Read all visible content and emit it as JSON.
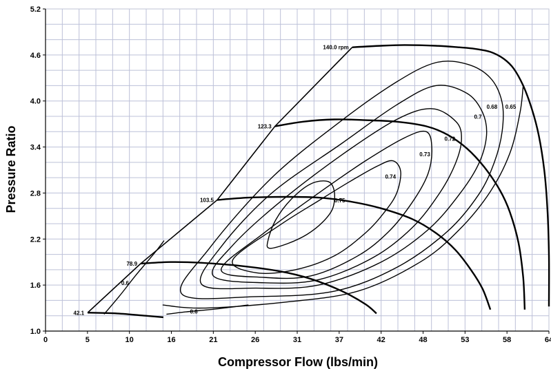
{
  "chart_data": {
    "type": "line",
    "title": "",
    "xlabel": "Compressor Flow (lbs/min)",
    "ylabel": "Pressure Ratio",
    "xlim": [
      0,
      64.5
    ],
    "ylim": [
      1.0,
      5.2
    ],
    "grid": true,
    "x_tick_labels": [
      "0",
      "5",
      "10",
      "16",
      "21",
      "26",
      "31",
      "37",
      "42",
      "48",
      "53",
      "58",
      "64"
    ],
    "y_tick_labels": [
      "1.0",
      "1.6",
      "2.2",
      "2.8",
      "3.4",
      "4.0",
      "4.6",
      "5.2"
    ],
    "speed_lines": [
      {
        "label": "42.1",
        "points": [
          [
            5.4,
            1.24
          ],
          [
            9.2,
            1.23
          ],
          [
            12.8,
            1.2
          ],
          [
            15.1,
            1.18
          ]
        ]
      },
      {
        "label": "78.9",
        "points": [
          [
            12.2,
            1.88
          ],
          [
            16,
            1.9
          ],
          [
            20,
            1.89
          ],
          [
            25,
            1.85
          ],
          [
            30,
            1.78
          ],
          [
            34,
            1.68
          ],
          [
            38,
            1.52
          ],
          [
            41,
            1.35
          ],
          [
            42.4,
            1.23
          ]
        ]
      },
      {
        "label": "103.5",
        "points": [
          [
            22,
            2.71
          ],
          [
            26,
            2.74
          ],
          [
            31,
            2.75
          ],
          [
            35,
            2.74
          ],
          [
            39,
            2.69
          ],
          [
            43,
            2.6
          ],
          [
            47,
            2.46
          ],
          [
            50,
            2.28
          ],
          [
            52.5,
            2.06
          ],
          [
            54.5,
            1.8
          ],
          [
            56,
            1.55
          ],
          [
            57,
            1.28
          ]
        ]
      },
      {
        "label": "123.3",
        "points": [
          [
            29.4,
            3.67
          ],
          [
            33,
            3.73
          ],
          [
            37,
            3.76
          ],
          [
            41,
            3.75
          ],
          [
            45,
            3.73
          ],
          [
            48.8,
            3.67
          ],
          [
            51.5,
            3.56
          ],
          [
            54,
            3.38
          ],
          [
            56.2,
            3.14
          ],
          [
            58.2,
            2.84
          ],
          [
            59.5,
            2.55
          ],
          [
            60.6,
            2.15
          ],
          [
            61.2,
            1.7
          ],
          [
            61.4,
            1.28
          ]
        ]
      },
      {
        "label": "140.0 rpm",
        "points": [
          [
            39.3,
            4.7
          ],
          [
            43,
            4.72
          ],
          [
            46,
            4.73
          ],
          [
            50,
            4.72
          ],
          [
            53,
            4.7
          ],
          [
            55,
            4.68
          ],
          [
            57,
            4.64
          ],
          [
            58.7,
            4.55
          ],
          [
            60,
            4.42
          ],
          [
            61.2,
            4.2
          ],
          [
            62.3,
            3.9
          ],
          [
            63.2,
            3.55
          ],
          [
            63.9,
            3.1
          ],
          [
            64.3,
            2.6
          ],
          [
            64.5,
            2.0
          ],
          [
            64.5,
            1.32
          ]
        ]
      }
    ],
    "surge_line": {
      "points": [
        [
          5.4,
          1.24
        ],
        [
          12.2,
          1.88
        ],
        [
          22,
          2.71
        ],
        [
          29.4,
          3.67
        ],
        [
          39.3,
          4.7
        ]
      ]
    },
    "efficiency_islands": [
      {
        "label": "0.75",
        "points": [
          [
            28.5,
            2.18
          ],
          [
            28.7,
            2.08
          ],
          [
            31,
            2.14
          ],
          [
            33.5,
            2.26
          ],
          [
            35.5,
            2.42
          ],
          [
            36.8,
            2.6
          ],
          [
            37,
            2.82
          ],
          [
            36.2,
            2.95
          ],
          [
            34,
            2.92
          ],
          [
            31.5,
            2.72
          ],
          [
            29.5,
            2.45
          ]
        ]
      },
      {
        "label": "0.74",
        "points": [
          [
            24,
            1.93
          ],
          [
            27,
            1.76
          ],
          [
            32,
            1.8
          ],
          [
            37,
            1.98
          ],
          [
            41,
            2.28
          ],
          [
            43.5,
            2.56
          ],
          [
            45,
            2.8
          ],
          [
            45.5,
            3.08
          ],
          [
            44.5,
            3.22
          ],
          [
            42.5,
            3.15
          ],
          [
            39,
            2.95
          ],
          [
            35,
            2.7
          ],
          [
            30,
            2.38
          ]
        ]
      },
      {
        "label": "0.73",
        "points": [
          [
            22.5,
            1.8
          ],
          [
            28,
            1.7
          ],
          [
            34,
            1.72
          ],
          [
            40,
            1.98
          ],
          [
            44,
            2.3
          ],
          [
            47,
            2.68
          ],
          [
            49,
            3.05
          ],
          [
            49.5,
            3.38
          ],
          [
            48.8,
            3.6
          ],
          [
            46,
            3.52
          ],
          [
            41,
            3.22
          ],
          [
            35,
            2.8
          ],
          [
            28,
            2.28
          ]
        ]
      },
      {
        "label": "0.72",
        "points": [
          [
            21.5,
            1.72
          ],
          [
            28,
            1.63
          ],
          [
            35,
            1.67
          ],
          [
            42,
            1.96
          ],
          [
            47,
            2.35
          ],
          [
            50.5,
            2.8
          ],
          [
            52.5,
            3.18
          ],
          [
            53.3,
            3.5
          ],
          [
            52.6,
            3.73
          ],
          [
            49.5,
            3.9
          ],
          [
            45,
            3.76
          ],
          [
            38,
            3.3
          ],
          [
            30,
            2.68
          ],
          [
            24,
            2.12
          ]
        ]
      },
      {
        "label": "0.7",
        "points": [
          [
            20,
            1.61
          ],
          [
            27,
            1.56
          ],
          [
            35,
            1.6
          ],
          [
            43,
            1.9
          ],
          [
            49,
            2.32
          ],
          [
            53,
            2.78
          ],
          [
            55.5,
            3.18
          ],
          [
            56.5,
            3.55
          ],
          [
            56,
            3.85
          ],
          [
            54,
            4.1
          ],
          [
            50,
            4.2
          ],
          [
            45,
            3.95
          ],
          [
            38,
            3.45
          ],
          [
            29,
            2.8
          ],
          [
            22.5,
            2.1
          ]
        ]
      },
      {
        "label": "0.68",
        "points": [
          [
            17.5,
            1.48
          ],
          [
            27,
            1.45
          ],
          [
            37,
            1.52
          ],
          [
            45,
            1.83
          ],
          [
            51.5,
            2.3
          ],
          [
            55.5,
            2.78
          ],
          [
            57.5,
            3.2
          ],
          [
            58.5,
            3.6
          ],
          [
            58.5,
            3.98
          ],
          [
            57,
            4.3
          ],
          [
            54,
            4.48
          ],
          [
            50,
            4.5
          ],
          [
            45,
            4.25
          ],
          [
            38,
            3.75
          ],
          [
            29,
            3.0
          ],
          [
            21,
            2.08
          ]
        ]
      },
      {
        "label": "0.65",
        "points": [
          [
            15,
            1.34
          ],
          [
            20,
            1.3
          ],
          [
            30,
            1.37
          ],
          [
            40,
            1.52
          ],
          [
            48,
            1.9
          ],
          [
            53,
            2.32
          ],
          [
            57,
            2.82
          ],
          [
            59.5,
            3.32
          ],
          [
            60.8,
            3.85
          ],
          [
            61.2,
            4.2
          ]
        ]
      },
      {
        "label": "0.6",
        "points": [
          [
            7.5,
            1.22
          ],
          [
            9.5,
            1.46
          ],
          [
            11.5,
            1.72
          ],
          [
            13,
            1.9
          ],
          [
            14.3,
            2.06
          ],
          [
            15.2,
            2.18
          ]
        ]
      },
      {
        "label": "0.6",
        "points": [
          [
            15.5,
            1.22
          ],
          [
            18,
            1.25
          ],
          [
            22,
            1.29
          ],
          [
            26,
            1.34
          ]
        ]
      }
    ]
  }
}
